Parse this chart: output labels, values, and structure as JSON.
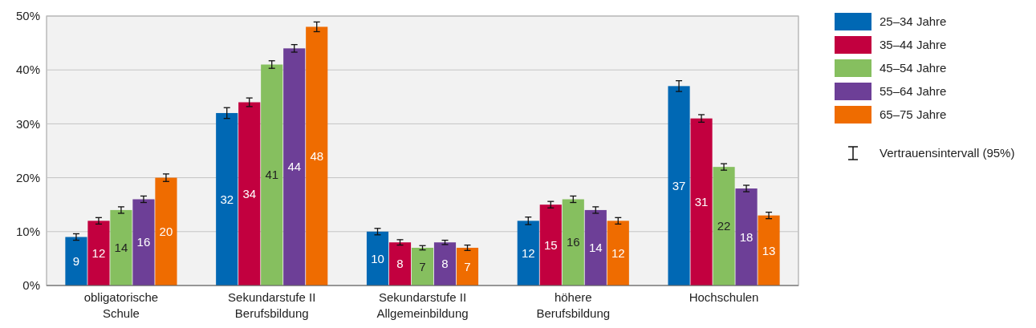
{
  "chart_data": {
    "type": "bar",
    "categories": [
      "obligatorische\nSchule",
      "Sekundarstufe II\nBerufsbildung",
      "Sekundarstufe II\nAllgemeinbildung",
      "höhere\nBerufsbildung",
      "Hochschulen"
    ],
    "series": [
      {
        "name": "25–34 Jahre",
        "color": "#0068b4",
        "values": [
          9,
          32,
          10,
          12,
          37
        ],
        "errors": [
          0.6,
          1,
          0.6,
          0.7,
          1
        ]
      },
      {
        "name": "35–44 Jahre",
        "color": "#c2003f",
        "values": [
          12,
          34,
          8,
          15,
          31
        ],
        "errors": [
          0.6,
          0.8,
          0.5,
          0.6,
          0.7
        ]
      },
      {
        "name": "45–54 Jahre",
        "color": "#86bf5f",
        "values": [
          14,
          41,
          7,
          16,
          22
        ],
        "errors": [
          0.6,
          0.7,
          0.4,
          0.6,
          0.6
        ]
      },
      {
        "name": "55–64 Jahre",
        "color": "#6d3f97",
        "values": [
          16,
          44,
          8,
          14,
          18
        ],
        "errors": [
          0.6,
          0.7,
          0.4,
          0.6,
          0.6
        ]
      },
      {
        "name": "65–75 Jahre",
        "color": "#ef6c00",
        "values": [
          20,
          48,
          7,
          12,
          13
        ],
        "errors": [
          0.7,
          0.9,
          0.5,
          0.6,
          0.6
        ]
      }
    ],
    "ylim": [
      0,
      50
    ],
    "yticks": [
      {
        "value": 0,
        "label": "0%"
      },
      {
        "value": 10,
        "label": "10%"
      },
      {
        "value": 20,
        "label": "20%"
      },
      {
        "value": 30,
        "label": "30%"
      },
      {
        "value": 40,
        "label": "40%"
      },
      {
        "value": 50,
        "label": "50%"
      }
    ],
    "grid": "y",
    "legend": "top right",
    "data_labels": true,
    "annotations": [
      "Vertrauensintervall (95%)"
    ]
  }
}
